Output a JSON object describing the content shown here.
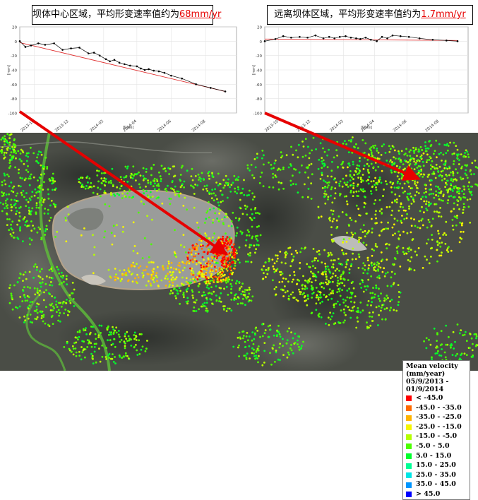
{
  "charts": [
    {
      "id": "left",
      "title_prefix": "坝体中心区域，平均形变速率值约为",
      "title_value": "68mm/yr",
      "y_ticks": [
        "20",
        "0",
        "-20",
        "-40",
        "-60",
        "-80",
        "-100"
      ],
      "x_ticks": [
        "2013-10",
        "2013-12",
        "2014-02",
        "2014-04",
        "2014-06",
        "2014-08"
      ],
      "ylabel": "[mm]",
      "xlabel": "[Date]"
    },
    {
      "id": "right",
      "title_prefix": "远离坝体区域，平均形变速率值约为",
      "title_value": "1.7mm/yr",
      "y_ticks": [
        "20",
        "0",
        "-20",
        "-40",
        "-60",
        "-80",
        "-100"
      ],
      "x_ticks": [
        "2013-10",
        "2013-12",
        "2014-02",
        "2014-04",
        "2014-06",
        "2014-08"
      ],
      "ylabel": "[mm]",
      "xlabel": "[Date]"
    }
  ],
  "chart_data": [
    {
      "type": "line",
      "title": "坝体中心区域，平均形变速率值约为68mm/yr",
      "xlabel": "[Date]",
      "ylabel": "[mm]",
      "ylim": [
        -100,
        20
      ],
      "xlim": [
        "2013-09-05",
        "2014-09-25"
      ],
      "series": [
        {
          "x": [
            "2013-09-05",
            "2013-09-15",
            "2013-09-25",
            "2013-10-08",
            "2013-10-20",
            "2013-11-05",
            "2013-11-20",
            "2013-12-05",
            "2013-12-20",
            "2014-01-05",
            "2014-01-15",
            "2014-01-25",
            "2014-02-05",
            "2014-02-12",
            "2014-02-20",
            "2014-03-01",
            "2014-03-10",
            "2014-03-20",
            "2014-04-01",
            "2014-04-08",
            "2014-04-15",
            "2014-04-22",
            "2014-05-01",
            "2014-05-10",
            "2014-05-20",
            "2014-06-01",
            "2014-06-20",
            "2014-07-15",
            "2014-08-10",
            "2014-09-05"
          ],
          "values": [
            0,
            -8,
            -6,
            -3,
            -5,
            -3,
            -12,
            -10,
            -9,
            -17,
            -16,
            -20,
            -25,
            -28,
            -26,
            -30,
            -32,
            -34,
            -35,
            -38,
            -40,
            -39,
            -41,
            -42,
            -44,
            -48,
            -52,
            -60,
            -65,
            -70
          ]
        },
        {
          "x": [
            "2013-09-05",
            "2014-09-05"
          ],
          "values": [
            -2,
            -70
          ]
        }
      ]
    },
    {
      "type": "line",
      "title": "远离坝体区域，平均形变速率值约为1.7mm/yr",
      "xlabel": "[Date]",
      "ylabel": "[mm]",
      "ylim": [
        -100,
        20
      ],
      "xlim": [
        "2013-09-05",
        "2014-09-25"
      ],
      "series": [
        {
          "x": [
            "2013-09-05",
            "2013-09-25",
            "2013-10-10",
            "2013-10-25",
            "2013-11-10",
            "2013-11-25",
            "2013-12-10",
            "2013-12-25",
            "2014-01-05",
            "2014-01-15",
            "2014-01-25",
            "2014-02-05",
            "2014-02-15",
            "2014-02-25",
            "2014-03-05",
            "2014-03-15",
            "2014-03-25",
            "2014-04-05",
            "2014-04-15",
            "2014-04-25",
            "2014-05-05",
            "2014-05-20",
            "2014-06-05",
            "2014-06-25",
            "2014-07-20",
            "2014-08-15",
            "2014-09-05"
          ],
          "values": [
            0,
            3,
            7,
            5,
            6,
            5,
            8,
            4,
            6,
            4,
            6,
            7,
            5,
            4,
            3,
            5,
            2,
            0,
            6,
            4,
            8,
            7,
            6,
            4,
            2,
            1,
            0
          ]
        },
        {
          "x": [
            "2013-09-05",
            "2014-09-05"
          ],
          "values": [
            3,
            1
          ]
        }
      ]
    }
  ],
  "legend": {
    "title_lines": [
      "Mean velocity",
      "(mm/year)",
      "05/9/2013 - 01/9/2014"
    ],
    "items": [
      {
        "label": "< -45.0",
        "color": "#ff0000"
      },
      {
        "label": "-45.0 - -35.0",
        "color": "#ff6a00"
      },
      {
        "label": "-35.0 - -25.0",
        "color": "#ffb400"
      },
      {
        "label": "-25.0 - -15.0",
        "color": "#f6f600"
      },
      {
        "label": "-15.0 - -5.0",
        "color": "#b5ff00"
      },
      {
        "label": "-5.0 - 5.0",
        "color": "#4cff00"
      },
      {
        "label": "5.0 - 15.0",
        "color": "#00ff2e"
      },
      {
        "label": "15.0 - 25.0",
        "color": "#00ff96"
      },
      {
        "label": "25.0 - 35.0",
        "color": "#00e6e6"
      },
      {
        "label": "35.0 - 45.0",
        "color": "#0096ff"
      },
      {
        "label": "> 45.0",
        "color": "#0000ff"
      }
    ]
  },
  "colors": {
    "arrow": "#e60000",
    "terrain": "#4a4d46",
    "tailings_pond": "#9a9c9a",
    "series_line": "#000000",
    "trend_line": "#e03030"
  }
}
